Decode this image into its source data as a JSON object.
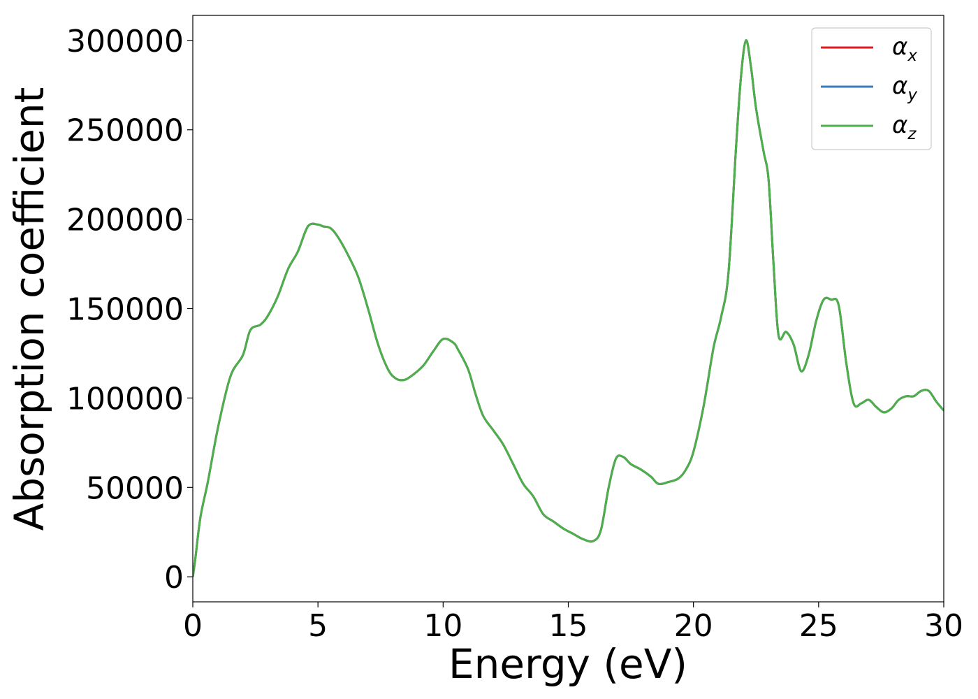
{
  "chart_data": {
    "type": "line",
    "xlabel": "Energy (eV)",
    "ylabel": "Absorption coefficient",
    "xlim": [
      0,
      30
    ],
    "ylim": [
      -14000,
      314000
    ],
    "xticks": [
      0,
      5,
      10,
      15,
      20,
      25,
      30
    ],
    "xtick_labels": [
      "0",
      "5",
      "10",
      "15",
      "20",
      "25",
      "30"
    ],
    "yticks": [
      0,
      50000,
      100000,
      150000,
      200000,
      250000,
      300000
    ],
    "ytick_labels": [
      "0",
      "50000",
      "100000",
      "150000",
      "200000",
      "250000",
      "300000"
    ],
    "grid": false,
    "legend_position": "top-right",
    "x": [
      0,
      0.1,
      0.3,
      0.6,
      1.0,
      1.5,
      2.0,
      2.3,
      2.7,
      3.0,
      3.4,
      3.8,
      4.2,
      4.6,
      5.0,
      5.2,
      5.5,
      5.8,
      6.2,
      6.6,
      7.0,
      7.4,
      7.8,
      8.1,
      8.4,
      8.7,
      9.2,
      9.6,
      10.0,
      10.4,
      10.6,
      11.0,
      11.3,
      11.6,
      12.0,
      12.4,
      12.8,
      13.2,
      13.6,
      14.0,
      14.4,
      14.8,
      15.2,
      15.6,
      16.0,
      16.3,
      16.6,
      16.9,
      17.2,
      17.5,
      17.9,
      18.3,
      18.6,
      19.0,
      19.4,
      19.7,
      20.0,
      20.4,
      20.8,
      21.1,
      21.4,
      21.7,
      21.9,
      22.1,
      22.3,
      22.5,
      22.8,
      23.0,
      23.2,
      23.4,
      23.7,
      24.0,
      24.3,
      24.6,
      24.9,
      25.2,
      25.5,
      25.8,
      26.1,
      26.4,
      26.7,
      27.0,
      27.3,
      27.6,
      27.9,
      28.2,
      28.5,
      28.8,
      29.1,
      29.4,
      29.7,
      30.0
    ],
    "series": [
      {
        "name": "x",
        "color": "#e41a1c",
        "values": [
          0,
          10000,
          33000,
          53000,
          83000,
          112000,
          124000,
          138000,
          141000,
          146000,
          157000,
          172000,
          182000,
          196000,
          197000,
          196000,
          195000,
          190000,
          180000,
          168000,
          150000,
          130000,
          116000,
          111000,
          110000,
          112000,
          118000,
          126000,
          133000,
          131000,
          127000,
          116000,
          102000,
          90000,
          82000,
          74000,
          63000,
          52000,
          45000,
          35000,
          31000,
          27000,
          24000,
          21000,
          20000,
          26000,
          49000,
          66000,
          67000,
          63000,
          60000,
          56000,
          52000,
          53000,
          55000,
          60000,
          70000,
          95000,
          128000,
          145000,
          170000,
          240000,
          280000,
          300000,
          285000,
          262000,
          238000,
          222000,
          175000,
          135000,
          137000,
          130000,
          115000,
          124000,
          143000,
          155000,
          155000,
          152000,
          120000,
          97000,
          97000,
          99000,
          95000,
          92000,
          94000,
          99000,
          101000,
          101000,
          104000,
          104000,
          98000,
          93000
        ]
      },
      {
        "name": "y",
        "color": "#377eb8",
        "values": [
          0,
          10000,
          33000,
          53000,
          83000,
          112000,
          124000,
          138000,
          141000,
          146000,
          157000,
          172000,
          182000,
          196000,
          197000,
          196000,
          195000,
          190000,
          180000,
          168000,
          150000,
          130000,
          116000,
          111000,
          110000,
          112000,
          118000,
          126000,
          133000,
          131000,
          127000,
          116000,
          102000,
          90000,
          82000,
          74000,
          63000,
          52000,
          45000,
          35000,
          31000,
          27000,
          24000,
          21000,
          20000,
          26000,
          49000,
          66000,
          67000,
          63000,
          60000,
          56000,
          52000,
          53000,
          55000,
          60000,
          70000,
          95000,
          128000,
          145000,
          170000,
          240000,
          280000,
          300000,
          285000,
          262000,
          238000,
          222000,
          175000,
          135000,
          137000,
          130000,
          115000,
          124000,
          143000,
          155000,
          155000,
          152000,
          120000,
          97000,
          97000,
          99000,
          95000,
          92000,
          94000,
          99000,
          101000,
          101000,
          104000,
          104000,
          98000,
          93000
        ]
      },
      {
        "name": "z",
        "color": "#4daf4a",
        "values": [
          0,
          10000,
          33000,
          53000,
          83000,
          112000,
          124000,
          138000,
          141000,
          146000,
          157000,
          172000,
          182000,
          196000,
          197000,
          196000,
          195000,
          190000,
          180000,
          168000,
          150000,
          130000,
          116000,
          111000,
          110000,
          112000,
          118000,
          126000,
          133000,
          131000,
          127000,
          116000,
          102000,
          90000,
          82000,
          74000,
          63000,
          52000,
          45000,
          35000,
          31000,
          27000,
          24000,
          21000,
          20000,
          26000,
          49000,
          66000,
          67000,
          63000,
          60000,
          56000,
          52000,
          53000,
          55000,
          60000,
          70000,
          95000,
          128000,
          145000,
          170000,
          240000,
          280000,
          300000,
          285000,
          262000,
          238000,
          222000,
          175000,
          135000,
          137000,
          130000,
          115000,
          124000,
          143000,
          155000,
          155000,
          152000,
          120000,
          97000,
          97000,
          99000,
          95000,
          92000,
          94000,
          99000,
          101000,
          101000,
          104000,
          104000,
          98000,
          93000
        ]
      }
    ],
    "legend": [
      {
        "symbol": "α",
        "subscript": "x"
      },
      {
        "symbol": "α",
        "subscript": "y"
      },
      {
        "symbol": "α",
        "subscript": "z"
      }
    ]
  }
}
